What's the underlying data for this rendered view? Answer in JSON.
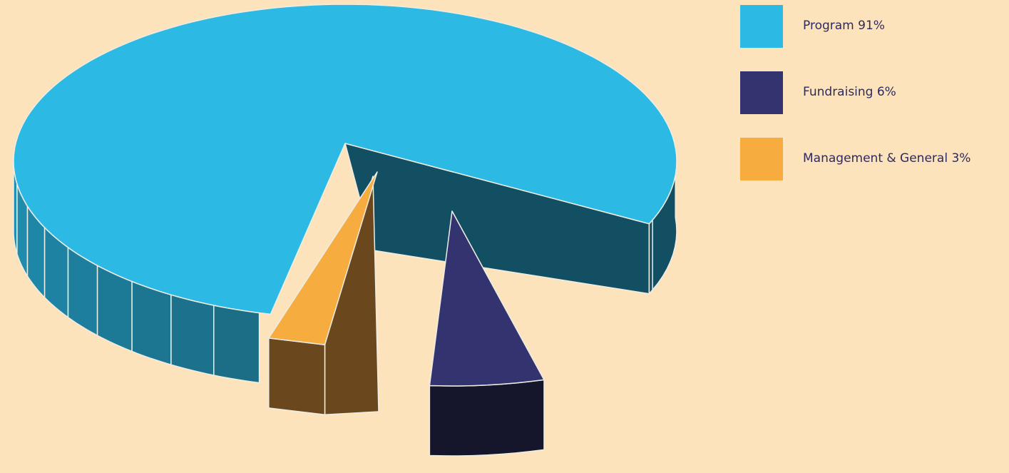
{
  "chart_data": {
    "type": "pie",
    "style": "3d-exploded",
    "title": "",
    "slices": [
      {
        "label": "Program 91%",
        "value": 91,
        "color": "#2CB9E3",
        "side_color": "#1F8FB3",
        "exploded": false
      },
      {
        "label": "Fundraising 6%",
        "value": 6,
        "color": "#33336F",
        "side_color": "#15152C",
        "exploded": true
      },
      {
        "label": "Management & General 3%",
        "value": 3,
        "color": "#F7AC40",
        "side_color": "#6A471C",
        "exploded": true
      }
    ],
    "legend": {
      "placement": "top-right"
    }
  },
  "colors": {
    "background": "#FDE3BC",
    "legend_text": "#2E2A5E",
    "cavity": "#124F62",
    "edge": "#EDEDE4"
  }
}
